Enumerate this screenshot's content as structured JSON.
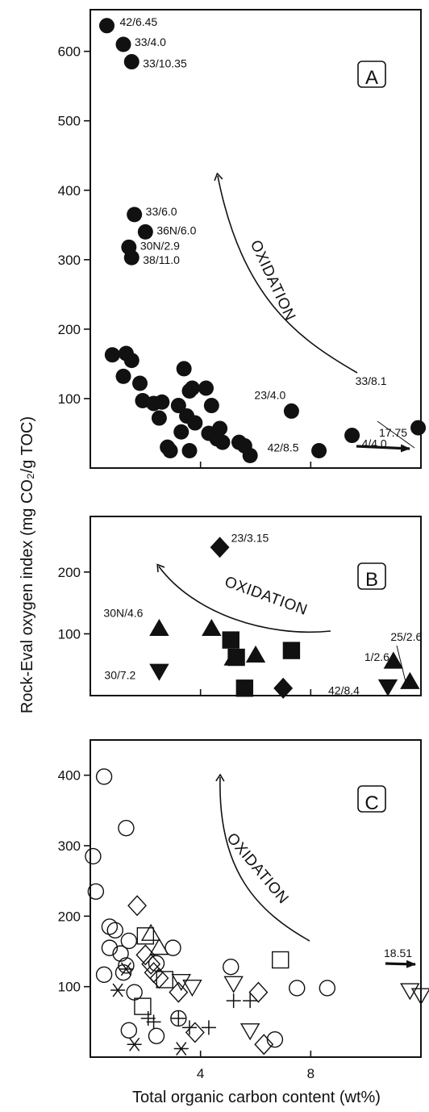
{
  "chart_data": [
    {
      "panel": "A",
      "type": "scatter",
      "xlim": [
        0,
        12
      ],
      "ylim": [
        0,
        660
      ],
      "yticks": [
        100,
        200,
        300,
        400,
        500,
        600
      ],
      "xticks": [
        4,
        8
      ],
      "show_x_tick_labels": false,
      "marker": "filled-circle",
      "points": [
        {
          "x": 0.6,
          "y": 637,
          "label": "42/6.45"
        },
        {
          "x": 1.2,
          "y": 610,
          "label": "33/4.0"
        },
        {
          "x": 1.5,
          "y": 585,
          "label": "33/10.35"
        },
        {
          "x": 1.6,
          "y": 365,
          "label": "33/6.0"
        },
        {
          "x": 2.0,
          "y": 340,
          "label": "36N/6.0"
        },
        {
          "x": 1.4,
          "y": 318,
          "label": "30N/2.9"
        },
        {
          "x": 1.5,
          "y": 303,
          "label": "38/11.0"
        },
        {
          "x": 7.3,
          "y": 82,
          "label": "23/4.0"
        },
        {
          "x": 8.3,
          "y": 25,
          "label": "42/8.5"
        },
        {
          "x": 9.5,
          "y": 47,
          "label": "4/4.0"
        },
        {
          "x": 11.9,
          "y": 58,
          "label": "33/8.1"
        },
        {
          "x": 0.8,
          "y": 163
        },
        {
          "x": 1.3,
          "y": 165
        },
        {
          "x": 1.5,
          "y": 155
        },
        {
          "x": 1.2,
          "y": 132
        },
        {
          "x": 1.8,
          "y": 122
        },
        {
          "x": 1.9,
          "y": 97
        },
        {
          "x": 2.3,
          "y": 93
        },
        {
          "x": 2.6,
          "y": 95
        },
        {
          "x": 2.5,
          "y": 72
        },
        {
          "x": 3.2,
          "y": 90
        },
        {
          "x": 3.3,
          "y": 52
        },
        {
          "x": 3.5,
          "y": 75
        },
        {
          "x": 3.4,
          "y": 143
        },
        {
          "x": 3.6,
          "y": 111
        },
        {
          "x": 3.7,
          "y": 115
        },
        {
          "x": 3.8,
          "y": 65
        },
        {
          "x": 3.6,
          "y": 25
        },
        {
          "x": 2.8,
          "y": 30
        },
        {
          "x": 2.9,
          "y": 25
        },
        {
          "x": 4.2,
          "y": 115
        },
        {
          "x": 4.3,
          "y": 50
        },
        {
          "x": 4.4,
          "y": 90
        },
        {
          "x": 4.6,
          "y": 42
        },
        {
          "x": 4.7,
          "y": 57
        },
        {
          "x": 4.8,
          "y": 37
        },
        {
          "x": 5.4,
          "y": 37
        },
        {
          "x": 5.6,
          "y": 32
        },
        {
          "x": 5.8,
          "y": 18
        }
      ],
      "annotations": [
        {
          "text": "A",
          "kind": "panel-letter"
        },
        {
          "text": "OXIDATION",
          "kind": "trend-arrow"
        },
        {
          "text": "17.75",
          "kind": "offscale-arrow"
        }
      ]
    },
    {
      "panel": "B",
      "type": "scatter",
      "xlim": [
        0,
        12
      ],
      "ylim": [
        0,
        290
      ],
      "yticks": [
        100,
        200
      ],
      "xticks": [
        4,
        8
      ],
      "show_x_tick_labels": false,
      "points": [
        {
          "x": 4.7,
          "y": 240,
          "marker": "diamond",
          "label": "23/3.15"
        },
        {
          "x": 7.0,
          "y": 12,
          "marker": "diamond"
        },
        {
          "x": 2.5,
          "y": 108,
          "marker": "triangle-up",
          "label": "30N/4.6"
        },
        {
          "x": 2.5,
          "y": 40,
          "marker": "triangle-down",
          "label": "30/7.2"
        },
        {
          "x": 4.4,
          "y": 108,
          "marker": "triangle-up"
        },
        {
          "x": 5.2,
          "y": 60,
          "marker": "triangle-up"
        },
        {
          "x": 6.0,
          "y": 65,
          "marker": "triangle-up"
        },
        {
          "x": 11.0,
          "y": 55,
          "marker": "triangle-up",
          "label": "1/2.6"
        },
        {
          "x": 11.6,
          "y": 22,
          "marker": "triangle-up",
          "label": "25/2.6"
        },
        {
          "x": 10.8,
          "y": 15,
          "marker": "triangle-down",
          "label": "42/8.4"
        },
        {
          "x": 5.1,
          "y": 90,
          "marker": "square"
        },
        {
          "x": 5.3,
          "y": 62,
          "marker": "square"
        },
        {
          "x": 5.6,
          "y": 12,
          "marker": "square"
        },
        {
          "x": 7.3,
          "y": 73,
          "marker": "square"
        }
      ],
      "annotations": [
        {
          "text": "B",
          "kind": "panel-letter"
        },
        {
          "text": "OXIDATION",
          "kind": "trend-arrow"
        }
      ]
    },
    {
      "panel": "C",
      "type": "scatter",
      "xlim": [
        0,
        12
      ],
      "ylim": [
        0,
        450
      ],
      "yticks": [
        100,
        200,
        300,
        400
      ],
      "xticks": [
        4,
        8
      ],
      "show_x_tick_labels": true,
      "points": [
        {
          "x": 0.5,
          "y": 398,
          "marker": "open-circle"
        },
        {
          "x": 1.3,
          "y": 325,
          "marker": "open-circle"
        },
        {
          "x": 0.1,
          "y": 285,
          "marker": "open-circle"
        },
        {
          "x": 0.2,
          "y": 235,
          "marker": "open-circle"
        },
        {
          "x": 0.7,
          "y": 185,
          "marker": "open-circle"
        },
        {
          "x": 0.9,
          "y": 180,
          "marker": "open-circle"
        },
        {
          "x": 0.7,
          "y": 155,
          "marker": "open-circle"
        },
        {
          "x": 1.4,
          "y": 165,
          "marker": "open-circle"
        },
        {
          "x": 1.1,
          "y": 147,
          "marker": "open-circle"
        },
        {
          "x": 1.3,
          "y": 130,
          "marker": "open-circle"
        },
        {
          "x": 0.5,
          "y": 117,
          "marker": "open-circle"
        },
        {
          "x": 1.2,
          "y": 120,
          "marker": "open-circle"
        },
        {
          "x": 1.6,
          "y": 92,
          "marker": "open-circle"
        },
        {
          "x": 1.4,
          "y": 38,
          "marker": "open-circle"
        },
        {
          "x": 2.4,
          "y": 30,
          "marker": "open-circle"
        },
        {
          "x": 2.4,
          "y": 133,
          "marker": "open-circle"
        },
        {
          "x": 3.0,
          "y": 155,
          "marker": "open-circle"
        },
        {
          "x": 3.2,
          "y": 55,
          "marker": "open-circle"
        },
        {
          "x": 5.1,
          "y": 128,
          "marker": "open-circle"
        },
        {
          "x": 6.7,
          "y": 25,
          "marker": "open-circle"
        },
        {
          "x": 7.5,
          "y": 98,
          "marker": "open-circle"
        },
        {
          "x": 8.6,
          "y": 98,
          "marker": "open-circle"
        },
        {
          "x": 1.7,
          "y": 215,
          "marker": "open-diamond"
        },
        {
          "x": 2.0,
          "y": 145,
          "marker": "open-diamond"
        },
        {
          "x": 2.2,
          "y": 132,
          "marker": "open-diamond"
        },
        {
          "x": 2.3,
          "y": 120,
          "marker": "open-diamond"
        },
        {
          "x": 2.5,
          "y": 112,
          "marker": "open-diamond"
        },
        {
          "x": 3.2,
          "y": 92,
          "marker": "open-diamond"
        },
        {
          "x": 3.8,
          "y": 35,
          "marker": "open-diamond"
        },
        {
          "x": 6.1,
          "y": 92,
          "marker": "open-diamond"
        },
        {
          "x": 6.3,
          "y": 18,
          "marker": "open-diamond"
        },
        {
          "x": 2.0,
          "y": 172,
          "marker": "open-square"
        },
        {
          "x": 2.7,
          "y": 110,
          "marker": "open-square"
        },
        {
          "x": 1.9,
          "y": 72,
          "marker": "open-square"
        },
        {
          "x": 6.9,
          "y": 138,
          "marker": "open-square"
        },
        {
          "x": 2.2,
          "y": 175,
          "marker": "open-triangle-up"
        },
        {
          "x": 2.5,
          "y": 155,
          "marker": "open-triangle-up"
        },
        {
          "x": 3.3,
          "y": 108,
          "marker": "open-triangle-down"
        },
        {
          "x": 3.7,
          "y": 100,
          "marker": "open-triangle-down"
        },
        {
          "x": 5.2,
          "y": 105,
          "marker": "open-triangle-down"
        },
        {
          "x": 5.8,
          "y": 38,
          "marker": "open-triangle-down"
        },
        {
          "x": 11.6,
          "y": 95,
          "marker": "open-triangle-down"
        },
        {
          "x": 12.0,
          "y": 88,
          "marker": "open-triangle-down"
        },
        {
          "x": 1.0,
          "y": 95,
          "marker": "asterisk"
        },
        {
          "x": 1.3,
          "y": 125,
          "marker": "asterisk"
        },
        {
          "x": 1.6,
          "y": 18,
          "marker": "asterisk"
        },
        {
          "x": 3.3,
          "y": 12,
          "marker": "asterisk"
        },
        {
          "x": 2.1,
          "y": 55,
          "marker": "plus"
        },
        {
          "x": 2.3,
          "y": 50,
          "marker": "plus"
        },
        {
          "x": 3.2,
          "y": 55,
          "marker": "plus"
        },
        {
          "x": 3.6,
          "y": 42,
          "marker": "plus"
        },
        {
          "x": 4.3,
          "y": 42,
          "marker": "plus"
        },
        {
          "x": 5.2,
          "y": 80,
          "marker": "plus"
        },
        {
          "x": 5.8,
          "y": 80,
          "marker": "plus"
        }
      ],
      "annotations": [
        {
          "text": "C",
          "kind": "panel-letter"
        },
        {
          "text": "OXIDATION",
          "kind": "trend-arrow"
        },
        {
          "text": "18.51",
          "kind": "offscale-arrow"
        }
      ]
    }
  ],
  "xlabel": "Total organic carbon content  (wt%)",
  "ylabel": "Rock-Eval oxygen index (mg CO₂/g TOC)"
}
